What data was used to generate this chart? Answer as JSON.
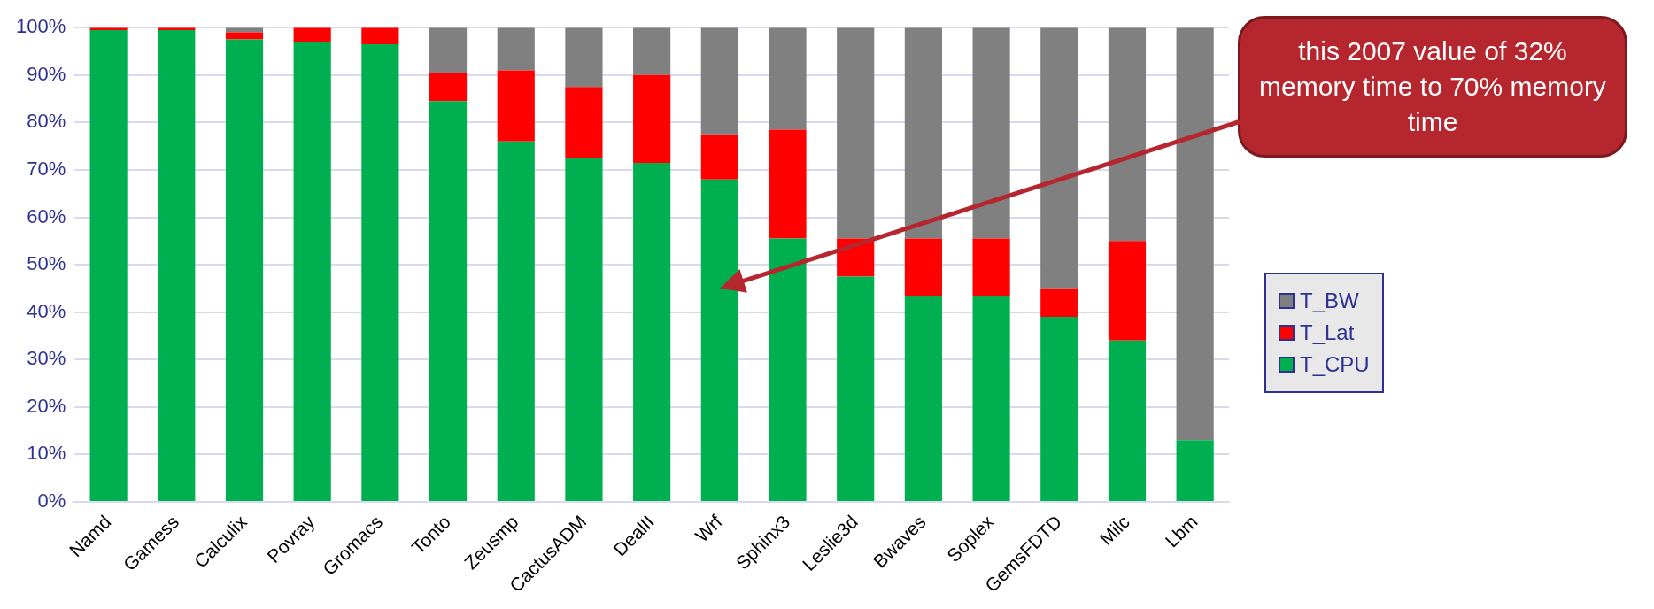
{
  "chart_data": {
    "type": "bar",
    "stacked": true,
    "categories": [
      "Namd",
      "Gamess",
      "Calculix",
      "Povray",
      "Gromacs",
      "Tonto",
      "Zeusmp",
      "CactusADM",
      "DealII",
      "Wrf",
      "Sphinx3",
      "Leslie3d",
      "Bwaves",
      "Soplex",
      "GemsFDTD",
      "Milc",
      "Lbm"
    ],
    "series": [
      {
        "name": "T_CPU",
        "color": "#00b050",
        "values": [
          99.5,
          99.5,
          97.5,
          97,
          96.5,
          84.5,
          76,
          72.5,
          71.5,
          68,
          55.5,
          47.5,
          43.5,
          43.5,
          39,
          34,
          13
        ]
      },
      {
        "name": "T_Lat",
        "color": "#ff0000",
        "values": [
          0.5,
          0.5,
          1.5,
          3,
          3.5,
          6,
          15,
          15,
          18.5,
          9.5,
          23,
          8,
          12,
          12,
          6,
          21,
          0
        ]
      },
      {
        "name": "T_BW",
        "color": "#808080",
        "values": [
          null,
          null,
          1,
          0,
          0,
          9.5,
          9,
          12.5,
          10,
          22.5,
          21.5,
          44.5,
          44.5,
          44.5,
          55,
          45,
          87
        ]
      }
    ],
    "ylim": [
      0,
      100
    ],
    "yticks": [
      {
        "value": 0,
        "label": "0%"
      },
      {
        "value": 10,
        "label": "10%"
      },
      {
        "value": 20,
        "label": "20%"
      },
      {
        "value": 30,
        "label": "30%"
      },
      {
        "value": 40,
        "label": "40%"
      },
      {
        "value": 50,
        "label": "50%"
      },
      {
        "value": 60,
        "label": "60%"
      },
      {
        "value": 70,
        "label": "70%"
      },
      {
        "value": 80,
        "label": "80%"
      },
      {
        "value": 90,
        "label": "90%"
      },
      {
        "value": 100,
        "label": "100%"
      }
    ],
    "grid": "y",
    "legend": "right",
    "annotations": [
      "this 2007 value of 32% memory time to 70% memory time"
    ]
  }
}
